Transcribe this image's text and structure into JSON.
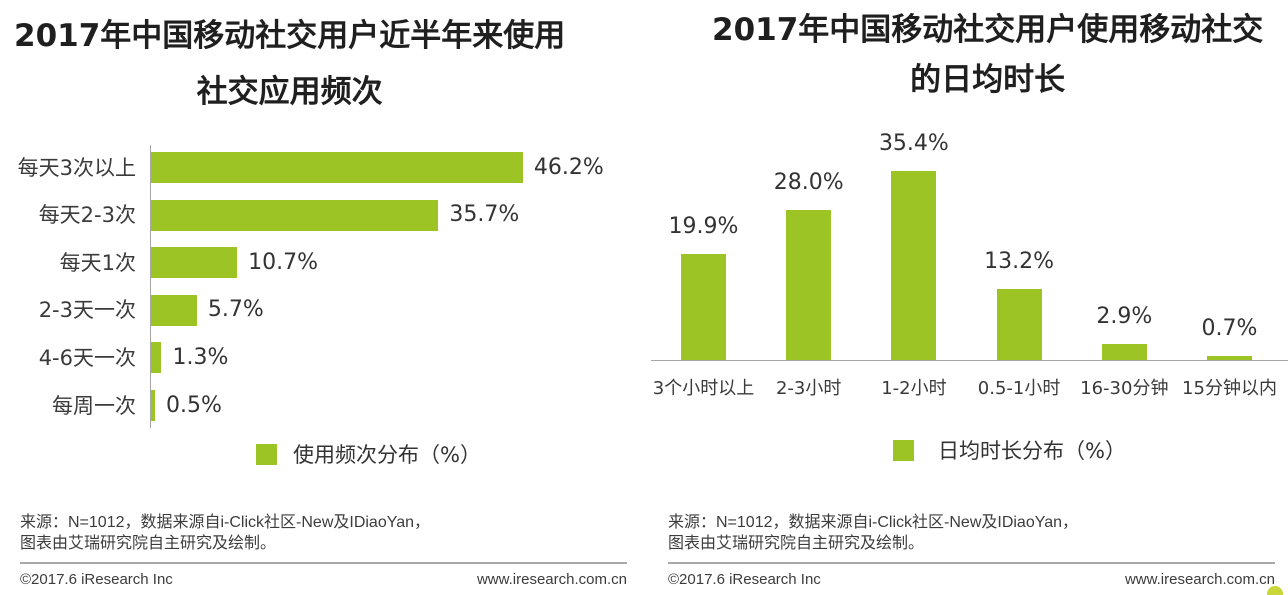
{
  "chart_data": [
    {
      "type": "bar",
      "orientation": "horizontal",
      "title": "2017年中国移动社交用户近半年来使用社交应用频次",
      "categories": [
        "每天3次以上",
        "每天2-3次",
        "每天1次",
        "2-3天一次",
        "4-6天一次",
        "每周一次"
      ],
      "series": [
        {
          "name": "使用频次分布（%）",
          "values": [
            46.2,
            35.7,
            10.7,
            5.7,
            1.3,
            0.5
          ],
          "data_labels": [
            "46.2%",
            "35.7%",
            "10.7%",
            "5.7%",
            "1.3%",
            "0.5%"
          ],
          "color": "#9BC424"
        }
      ],
      "grid": false,
      "legend_position": "bottom"
    },
    {
      "type": "bar",
      "orientation": "vertical",
      "title": "2017年中国移动社交用户使用移动社交的日均时长",
      "categories": [
        "3个小时以上",
        "2-3小时",
        "1-2小时",
        "0.5-1小时",
        "16-30分钟",
        "15分钟以内"
      ],
      "series": [
        {
          "name": "日均时长分布（%）",
          "values": [
            19.9,
            28.0,
            35.4,
            13.2,
            2.9,
            0.7
          ],
          "data_labels": [
            "19.9%",
            "28.0%",
            "35.4%",
            "13.2%",
            "2.9%",
            "0.7%"
          ],
          "color": "#9BC424"
        }
      ],
      "grid": false,
      "legend_position": "bottom"
    }
  ],
  "panels": [
    {
      "source_lines": [
        "来源：N=1012，数据来源自i-Click社区-New及IDiaoYan，",
        "图表由艾瑞研究院自主研究及绘制。"
      ],
      "copyright": "©2017.6 iResearch Inc",
      "website": "www.iresearch.com.cn"
    },
    {
      "source_lines": [
        "来源：N=1012，数据来源自i-Click社区-New及IDiaoYan，",
        "图表由艾瑞研究院自主研究及绘制。"
      ],
      "copyright": "©2017.6 iResearch Inc",
      "website": "www.iresearch.com.cn"
    }
  ]
}
